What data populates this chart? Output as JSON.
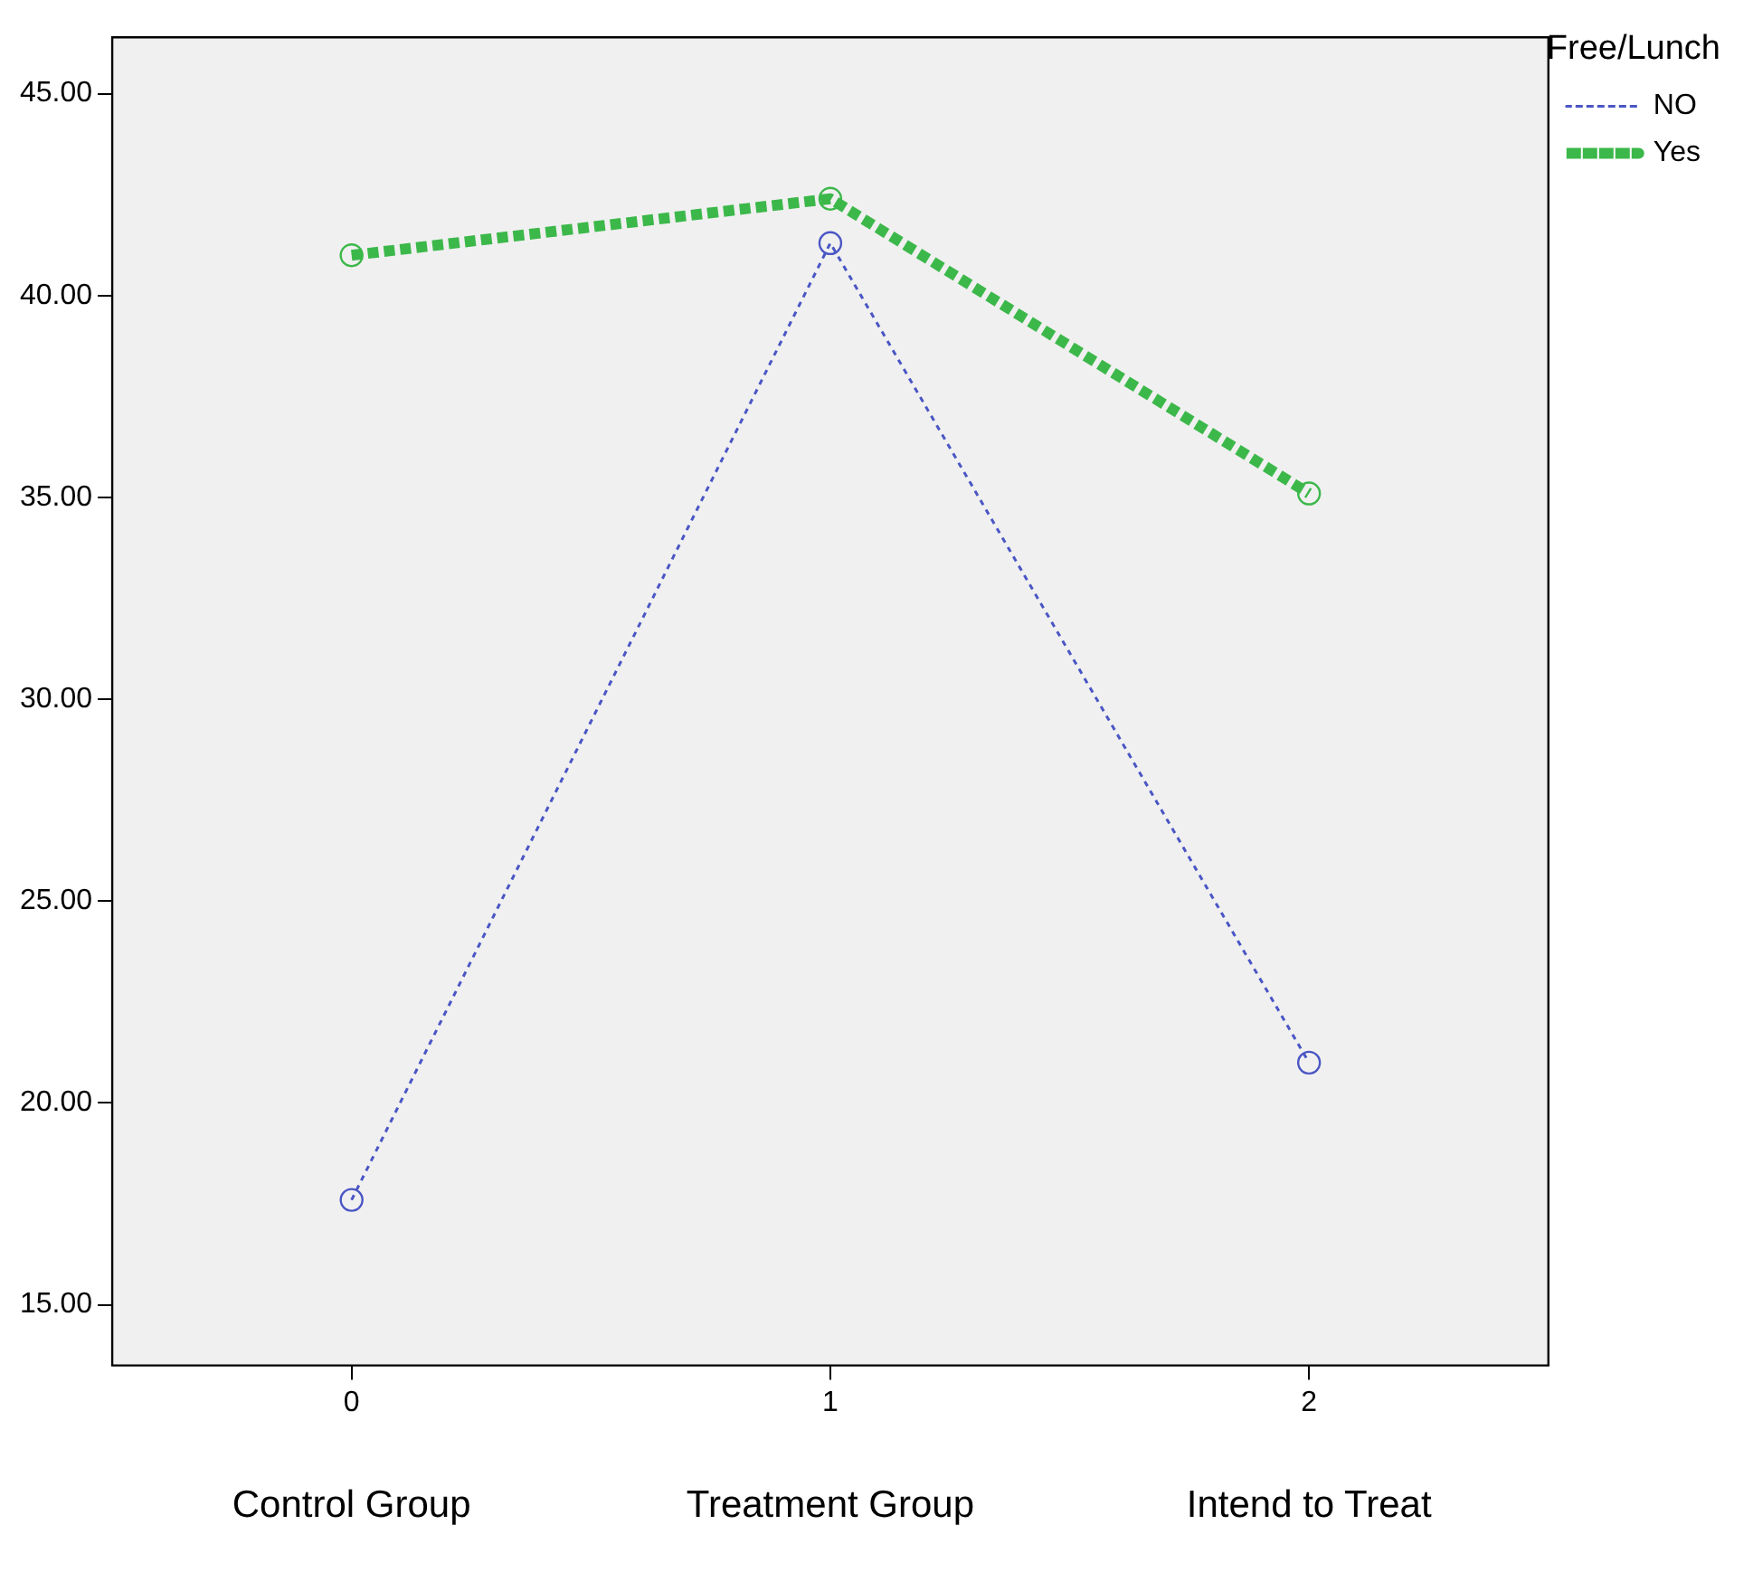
{
  "chart_data": {
    "type": "line",
    "categories": [
      "0",
      "1",
      "2"
    ],
    "series": [
      {
        "name": "NO",
        "color": "#4a56c4",
        "values": [
          17.6,
          41.3,
          21.0
        ],
        "line_style": "dotted",
        "marker": "circle"
      },
      {
        "name": "Yes",
        "color": "#3cb84a",
        "values": [
          41.0,
          42.4,
          35.1
        ],
        "line_style": "dashed",
        "marker": "circle"
      }
    ],
    "ylim": [
      13.5,
      46.4
    ],
    "yticks": [
      {
        "value": 15,
        "label": "15.00"
      },
      {
        "value": 20,
        "label": "20.00"
      },
      {
        "value": 25,
        "label": "25.00"
      },
      {
        "value": 30,
        "label": "30.00"
      },
      {
        "value": 35,
        "label": "35.00"
      },
      {
        "value": 40,
        "label": "40.00"
      },
      {
        "value": 45,
        "label": "45.00"
      }
    ],
    "grid": false,
    "legend": "top right",
    "legend_title": "Free/Lunch",
    "annotations": [
      "Control Group",
      "Treatment Group",
      "Intend to Treat"
    ]
  }
}
